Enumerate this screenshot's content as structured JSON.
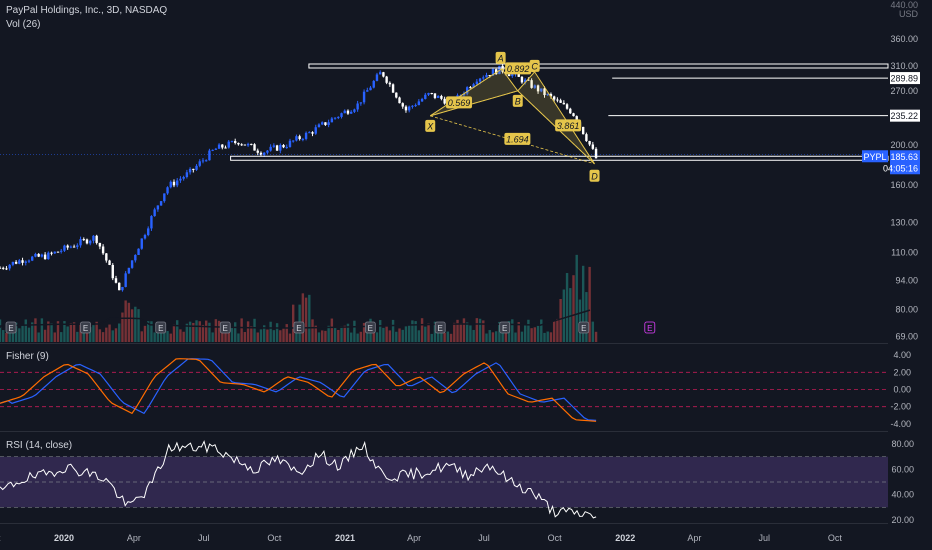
{
  "header": {
    "title": "PayPal Holdings, Inc., 3D, NASDAQ",
    "volume_label": "Vol (26)"
  },
  "colors": {
    "background": "#131722",
    "up": "#2962ff",
    "down": "#ffffff",
    "fisher_line": "#ff6d00",
    "fisher_trigger": "#2962ff",
    "rsi_line": "#ffffff",
    "rsi_band": "#7e57c2",
    "pattern": "#e5c54b"
  },
  "price_axis": {
    "top_label": "440.00",
    "currency": "USD",
    "ticks": [
      "360.00",
      "310.00",
      "270.00",
      "235.22",
      "200.00",
      "160.00",
      "130.00",
      "110.00",
      "94.00",
      "80.00",
      "69.00"
    ]
  },
  "price_labels": {
    "level_1": "289.89",
    "level_2": "235.22",
    "ticker": "PYPL",
    "last_price": "185.63",
    "countdown": "04:05:16"
  },
  "pattern_labels": {
    "X": "X",
    "A": "A",
    "B": "B",
    "C": "C",
    "D": "D",
    "ratio_xb": "0.569",
    "ratio_ac": "0.892",
    "ratio_bd": "3.861",
    "ratio_xd": "1.694"
  },
  "earnings_marker": "E",
  "fisher": {
    "label": "Fisher (9)",
    "ticks": [
      "4.00",
      "2.00",
      "0.00",
      "-2.00",
      "-4.00"
    ]
  },
  "rsi": {
    "label": "RSI (14, close)",
    "ticks": [
      "80.00",
      "60.00",
      "40.00",
      "20.00"
    ]
  },
  "time_axis": {
    "labels": [
      "Oct",
      "2020",
      "Apr",
      "Jul",
      "Oct",
      "2021",
      "Apr",
      "Jul",
      "Oct",
      "2022",
      "Apr",
      "Jul",
      "Oct"
    ]
  },
  "chart_data": {
    "type": "candlestick",
    "symbol": "PYPL",
    "interval": "3D",
    "exchange": "NASDAQ",
    "y_scale": "log",
    "ylim": [
      69,
      440
    ],
    "price_path": [
      {
        "date": "2019-10",
        "price": 101
      },
      {
        "date": "2019-11",
        "price": 106
      },
      {
        "date": "2019-12",
        "price": 108
      },
      {
        "date": "2020-01",
        "price": 114
      },
      {
        "date": "2020-02",
        "price": 120
      },
      {
        "date": "2020-03",
        "price": 88
      },
      {
        "date": "2020-04",
        "price": 120
      },
      {
        "date": "2020-05",
        "price": 158
      },
      {
        "date": "2020-06",
        "price": 172
      },
      {
        "date": "2020-07",
        "price": 195
      },
      {
        "date": "2020-08",
        "price": 204
      },
      {
        "date": "2020-09",
        "price": 192
      },
      {
        "date": "2020-10",
        "price": 200
      },
      {
        "date": "2020-11",
        "price": 214
      },
      {
        "date": "2020-12",
        "price": 232
      },
      {
        "date": "2021-01",
        "price": 250
      },
      {
        "date": "2021-02",
        "price": 300
      },
      {
        "date": "2021-03",
        "price": 242
      },
      {
        "date": "2021-04",
        "price": 265
      },
      {
        "date": "2021-05",
        "price": 252
      },
      {
        "date": "2021-06",
        "price": 290
      },
      {
        "date": "2021-07",
        "price": 305
      },
      {
        "date": "2021-08",
        "price": 285
      },
      {
        "date": "2021-09",
        "price": 262
      },
      {
        "date": "2021-10",
        "price": 240
      },
      {
        "date": "2021-11",
        "price": 185.63
      }
    ],
    "horizontal_levels": [
      310,
      289.89,
      235.22,
      185.63
    ],
    "harmonic_pattern": {
      "X": 235,
      "A": 305,
      "B": 270,
      "C": 300,
      "D": 180,
      "ratios": {
        "XB": 0.569,
        "AC": 0.892,
        "BD": 3.861,
        "XD": 1.694
      }
    },
    "fisher_path": [
      -1.6,
      -0.8,
      1.5,
      3.0,
      1.8,
      -1.5,
      -2.8,
      1.5,
      3.6,
      3.5,
      0.8,
      0.6,
      -0.3,
      1.5,
      0.8,
      -1.0,
      2.2,
      3.0,
      0.3,
      1.5,
      -0.5,
      1.8,
      3.2,
      -0.5,
      -1.5,
      -1.0,
      -3.5,
      -3.7
    ],
    "rsi_path": [
      42,
      52,
      55,
      62,
      58,
      52,
      30,
      45,
      78,
      77,
      78,
      68,
      60,
      68,
      57,
      72,
      62,
      80,
      55,
      55,
      58,
      63,
      56,
      64,
      50,
      42,
      27,
      25,
      24
    ]
  }
}
